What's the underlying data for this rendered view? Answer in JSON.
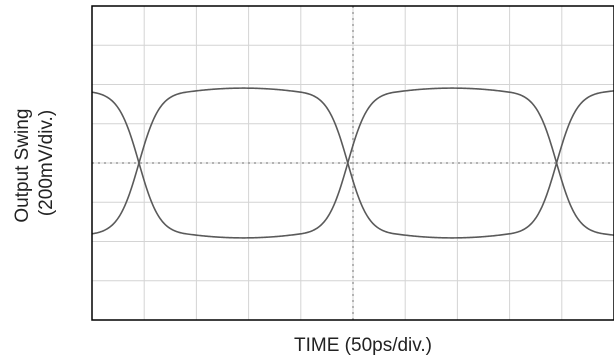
{
  "chart_data": {
    "type": "line",
    "title": "",
    "xlabel": "TIME (50ps/div.)",
    "ylabel_line1": "Output Swing",
    "ylabel_line2": "(200mV/div.)",
    "grid": true,
    "divisions": {
      "x": 10,
      "y": 8
    },
    "x_units": "divisions",
    "y_units": "divisions",
    "xlim": [
      0,
      10
    ],
    "ylim": [
      -4,
      4
    ],
    "eye": {
      "crossing_points_x": [
        0.9,
        4.9,
        8.9
      ],
      "crossing_level_y": 0,
      "amplitude_y": 1.8,
      "start_x": -0.6,
      "end_x": 10.1
    },
    "colors": {
      "trace": "#5a5a5a",
      "grid": "#d4d4d4",
      "center_axis": "#9a9a9a",
      "frame": "#000000"
    }
  }
}
